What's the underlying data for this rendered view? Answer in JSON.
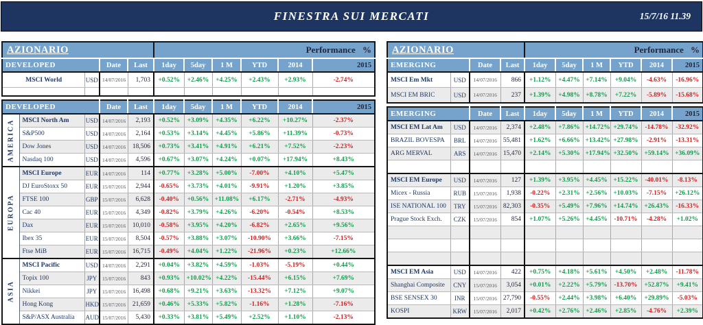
{
  "banner": {
    "title": "FINESTRA SUI MERCATI",
    "timestamp": "15/7/16 11.39"
  },
  "performance_title": "Performance %",
  "columns": [
    "Date",
    "Last",
    "1day",
    "5day",
    "1 M",
    "YTD",
    "2014",
    "2015"
  ],
  "colors": {
    "banner_navy": "#1d3560",
    "header_blue": "#76a3cb",
    "positive_green": "#0f9c4b",
    "negative_red": "#cc2121",
    "name_navy": "#1f3864",
    "row_shade": "#ebebeb"
  },
  "left": {
    "section_title": "AZIONARIO",
    "header_label": "DEVELOPED",
    "top_rows": [
      {
        "name": "MSCI World",
        "bold": true,
        "ccy": "USD",
        "date": "14/07/2016",
        "last": "1,703",
        "perf": [
          "+0.52%",
          "+2.46%",
          "+4.25%",
          "+2.43%",
          "+2.93%",
          "-2.74%"
        ],
        "shade": false
      },
      {
        "empty": true,
        "shade": false
      }
    ],
    "groups": [
      {
        "region": "AMERICA",
        "rows": [
          {
            "name": "MSCI North Am",
            "bold": true,
            "ccy": "USD",
            "date": "14/07/2016",
            "last": "2,193",
            "perf": [
              "+0.52%",
              "+3.09%",
              "+4.35%",
              "+6.22%",
              "+10.27%",
              "-2.37%"
            ],
            "shade": true
          },
          {
            "name": "S&P500",
            "ccy": "USD",
            "date": "14/07/2016",
            "last": "2,164",
            "perf": [
              "+0.53%",
              "+3.14%",
              "+4.45%",
              "+5.86%",
              "+11.39%",
              "-0.73%"
            ],
            "shade": false
          },
          {
            "name": "Dow Jones",
            "ccy": "USD",
            "date": "14/07/2016",
            "last": "18,506",
            "perf": [
              "+0.73%",
              "+3.41%",
              "+4.91%",
              "+6.21%",
              "+7.52%",
              "-2.23%"
            ],
            "shade": true
          },
          {
            "name": "Nasdaq 100",
            "ccy": "USD",
            "date": "14/07/2016",
            "last": "4,596",
            "perf": [
              "+0.67%",
              "+3.07%",
              "+4.24%",
              "+0.07%",
              "+17.94%",
              "+8.43%"
            ],
            "shade": false
          }
        ]
      },
      {
        "region": "EUROPA",
        "rows": [
          {
            "name": "MSCI Europe",
            "bold": true,
            "ccy": "EUR",
            "date": "14/07/2016",
            "last": "114",
            "perf": [
              "+0.77%",
              "+3.28%",
              "+5.00%",
              "-7.00%",
              "+4.10%",
              "+5.47%"
            ],
            "shade": true
          },
          {
            "name": "DJ EuroStoxx 50",
            "ccy": "EUR",
            "date": "15/07/2016",
            "last": "2,944",
            "perf": [
              "-0.65%",
              "+3.73%",
              "+4.01%",
              "-9.91%",
              "+1.20%",
              "+3.85%"
            ],
            "shade": false
          },
          {
            "name": "FTSE 100",
            "ccy": "GBP",
            "date": "15/07/2016",
            "last": "6,628",
            "perf": [
              "-0.40%",
              "+0.56%",
              "+11.08%",
              "+6.17%",
              "-2.71%",
              "-4.93%"
            ],
            "shade": true
          },
          {
            "name": "Cac 40",
            "ccy": "EUR",
            "date": "15/07/2016",
            "last": "4,349",
            "perf": [
              "-0.82%",
              "+3.79%",
              "+4.26%",
              "-6.20%",
              "-0.54%",
              "+8.53%"
            ],
            "shade": false
          },
          {
            "name": "Dax",
            "ccy": "EUR",
            "date": "15/07/2016",
            "last": "10,010",
            "perf": [
              "-0.58%",
              "+3.95%",
              "+4.20%",
              "-6.82%",
              "+2.65%",
              "+9.56%"
            ],
            "shade": true
          },
          {
            "name": "Ibex 35",
            "ccy": "EUR",
            "date": "15/07/2016",
            "last": "8,504",
            "perf": [
              "-0.57%",
              "+3.88%",
              "+3.07%",
              "-10.90%",
              "+3.66%",
              "-7.15%"
            ],
            "shade": false
          },
          {
            "name": "Ftse MiB",
            "ccy": "EUR",
            "date": "15/07/2016",
            "last": "16,715",
            "perf": [
              "-0.49%",
              "+4.04%",
              "+1.22%",
              "-21.96%",
              "+0.23%",
              "+12.66%"
            ],
            "shade": true
          }
        ]
      },
      {
        "region": "ASIA",
        "rows": [
          {
            "name": "MSCI Pacific",
            "bold": true,
            "ccy": "USD",
            "date": "14/07/2016",
            "last": "2,291",
            "perf": [
              "+0.04%",
              "+3.82%",
              "+4.59%",
              "-1.03%",
              "-5.19%",
              "+0.44%"
            ],
            "shade": false
          },
          {
            "name": "Topix 100",
            "ccy": "JPY",
            "date": "15/07/2016",
            "last": "843",
            "perf": [
              "+0.93%",
              "+10.02%",
              "+4.22%",
              "-15.44%",
              "+6.15%",
              "+7.69%"
            ],
            "shade": true
          },
          {
            "name": "Nikkei",
            "ccy": "JPY",
            "date": "15/07/2016",
            "last": "16,498",
            "perf": [
              "+0.68%",
              "+9.21%",
              "+3.63%",
              "-13.32%",
              "+7.12%",
              "+9.07%"
            ],
            "shade": false
          },
          {
            "name": "Hong Kong",
            "ccy": "HKD",
            "date": "15/07/2016",
            "last": "21,659",
            "perf": [
              "+0.46%",
              "+5.33%",
              "+5.82%",
              "-1.16%",
              "+1.28%",
              "-7.16%"
            ],
            "shade": true
          },
          {
            "name": "S&P/ASX Australia",
            "ccy": "AUD",
            "date": "15/07/2016",
            "last": "5,430",
            "perf": [
              "+0.33%",
              "+3.81%",
              "+5.49%",
              "+2.52%",
              "+1.10%",
              "-2.13%"
            ],
            "shade": false
          }
        ]
      }
    ]
  },
  "right": {
    "section_title": "AZIONARIO",
    "header_label": "EMERGING",
    "top_rows": [
      {
        "name": "MSCI Em Mkt",
        "bold": true,
        "ccy": "USD",
        "date": "14/07/2016",
        "last": "866",
        "perf": [
          "+1.12%",
          "+4.47%",
          "+7.14%",
          "+9.04%",
          "-4.63%",
          "-16.96%"
        ],
        "shade": false
      },
      {
        "name": "MSCI EM BRIC",
        "ccy": "USD",
        "date": "14/07/2016",
        "last": "237",
        "perf": [
          "+1.39%",
          "+4.98%",
          "+8.78%",
          "+7.22%",
          "-5.89%",
          "-15.68%"
        ],
        "shade": true
      }
    ],
    "groups": [
      {
        "region": null,
        "rows": [
          {
            "name": "MSCI EM Lat Am",
            "bold": true,
            "ccy": "USD",
            "date": "14/07/2016",
            "last": "2,374",
            "perf": [
              "+2.48%",
              "+7.86%",
              "+14.72%",
              "+29.74%",
              "-14.78%",
              "-32.92%"
            ],
            "shade": true
          },
          {
            "name": "BRAZIL BOVESPA",
            "ccy": "BRL",
            "date": "14/07/2016",
            "last": "55,481",
            "perf": [
              "+1.62%",
              "+6.66%",
              "+13.42%",
              "+27.98%",
              "-2.91%",
              "-13.31%"
            ],
            "shade": false
          },
          {
            "name": "ARG MERVAL",
            "ccy": "ARS",
            "date": "14/07/2016",
            "last": "15,470",
            "perf": [
              "+2.14%",
              "+5.30%",
              "+17.94%",
              "+32.50%",
              "+59.14%",
              "+36.09%"
            ],
            "shade": true
          },
          {
            "empty": true,
            "shade": false
          }
        ]
      },
      {
        "region": null,
        "rows": [
          {
            "name": "MSCI EM Europe",
            "bold": true,
            "ccy": "USD",
            "date": "14/07/2016",
            "last": "127",
            "perf": [
              "+1.39%",
              "+3.95%",
              "+4.45%",
              "+15.22%",
              "-40.01%",
              "-8.13%"
            ],
            "shade": true
          },
          {
            "name": "Micex - Russia",
            "ccy": "RUB",
            "date": "15/07/2016",
            "last": "1,938",
            "perf": [
              "-0.22%",
              "+2.31%",
              "+2.56%",
              "+10.03%",
              "-7.15%",
              "+26.12%"
            ],
            "shade": false
          },
          {
            "name": "ISE NATIONAL 100",
            "ccy": "TRY",
            "date": "15/07/2016",
            "last": "82,303",
            "perf": [
              "-0.35%",
              "+5.49%",
              "+7.96%",
              "+14.74%",
              "+26.43%",
              "-16.33%"
            ],
            "shade": true
          },
          {
            "name": "Prague Stock Exch.",
            "ccy": "CZK",
            "date": "15/07/2016",
            "last": "854",
            "perf": [
              "+1.07%",
              "+5.26%",
              "+4.45%",
              "-10.71%",
              "-4.28%",
              "+1.02%"
            ],
            "shade": false
          },
          {
            "empty": true,
            "shade": true
          },
          {
            "empty": true,
            "shade": false
          },
          {
            "empty": true,
            "shade": true
          }
        ]
      },
      {
        "region": null,
        "rows": [
          {
            "name": "MSCI EM Asia",
            "bold": true,
            "ccy": "USD",
            "date": "14/07/2016",
            "last": "422",
            "perf": [
              "+0.75%",
              "+4.18%",
              "+5.61%",
              "+4.50%",
              "+2.48%",
              "-11.78%"
            ],
            "shade": false
          },
          {
            "name": "Shanghai Composite",
            "ccy": "CNY",
            "date": "15/07/2016",
            "last": "3,054",
            "perf": [
              "+0.01%",
              "+2.22%",
              "+5.79%",
              "-13.70%",
              "+52.87%",
              "+9.41%"
            ],
            "shade": true
          },
          {
            "name": "BSE SENSEX 30",
            "ccy": "INR",
            "date": "15/07/2016",
            "last": "27,790",
            "perf": [
              "-0.55%",
              "+2.44%",
              "+3.98%",
              "+6.40%",
              "+29.89%",
              "-5.03%"
            ],
            "shade": false
          },
          {
            "name": "KOSPI",
            "ccy": "KRW",
            "date": "15/07/2016",
            "last": "2,017",
            "perf": [
              "+0.42%",
              "+2.76%",
              "+2.46%",
              "+2.85%",
              "-4.76%",
              "+2.39%"
            ],
            "shade": true
          }
        ]
      }
    ]
  }
}
